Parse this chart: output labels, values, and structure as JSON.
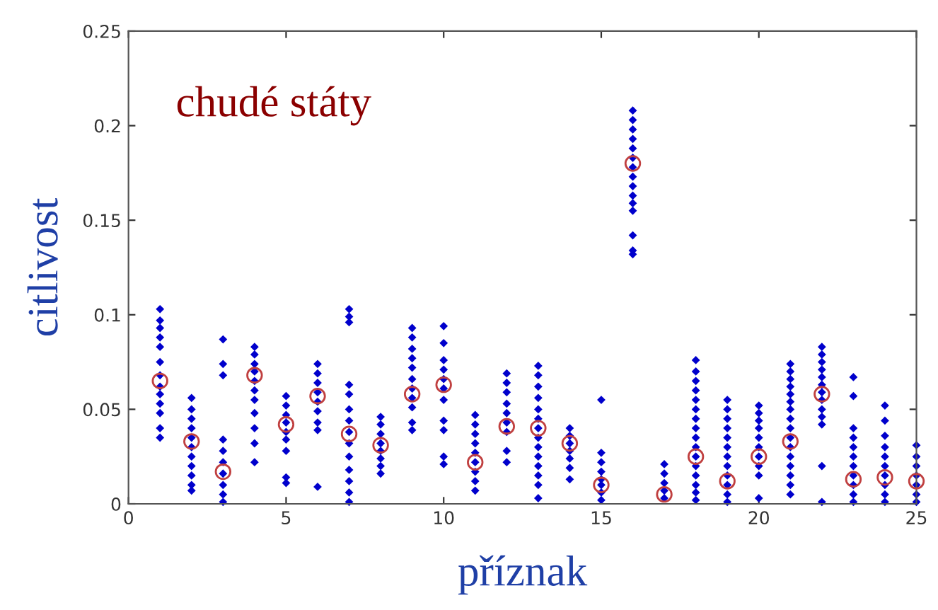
{
  "chart_data": {
    "type": "scatter",
    "xlabel": "příznak",
    "ylabel": "citlivost",
    "annotations": [
      "chudé státy"
    ],
    "xlim": [
      0,
      25
    ],
    "xticks": [
      0,
      5,
      10,
      15,
      20,
      25
    ],
    "ylim": [
      0,
      0.25
    ],
    "yticks": [
      0,
      0.05,
      0.1,
      0.15,
      0.2,
      0.25
    ],
    "grid": false,
    "legend": false,
    "series": [
      {
        "color": "#0000cc",
        "marker": "diamond",
        "x": [
          1,
          1,
          1,
          1,
          1,
          1,
          1,
          1,
          1,
          1,
          1,
          1,
          1,
          2,
          2,
          2,
          2,
          2,
          2,
          2,
          2,
          2,
          2,
          2,
          3,
          3,
          3,
          3,
          3,
          3,
          3,
          3,
          3,
          3,
          4,
          4,
          4,
          4,
          4,
          4,
          4,
          4,
          4,
          4,
          4,
          5,
          5,
          5,
          5,
          5,
          5,
          5,
          5,
          5,
          6,
          6,
          6,
          6,
          6,
          6,
          6,
          6,
          6,
          7,
          7,
          7,
          7,
          7,
          7,
          7,
          7,
          7,
          7,
          7,
          7,
          7,
          7,
          8,
          8,
          8,
          8,
          8,
          8,
          8,
          8,
          9,
          9,
          9,
          9,
          9,
          9,
          9,
          9,
          9,
          9,
          9,
          10,
          10,
          10,
          10,
          10,
          10,
          10,
          10,
          10,
          10,
          10,
          11,
          11,
          11,
          11,
          11,
          11,
          11,
          11,
          11,
          12,
          12,
          12,
          12,
          12,
          12,
          12,
          12,
          12,
          13,
          13,
          13,
          13,
          13,
          13,
          13,
          13,
          13,
          13,
          13,
          13,
          13,
          13,
          14,
          14,
          14,
          14,
          14,
          14,
          14,
          15,
          15,
          15,
          15,
          15,
          15,
          15,
          15,
          16,
          16,
          16,
          16,
          16,
          16,
          16,
          16,
          16,
          16,
          16,
          16,
          16,
          16,
          16,
          17,
          17,
          17,
          17,
          17,
          18,
          18,
          18,
          18,
          18,
          18,
          18,
          18,
          18,
          18,
          18,
          18,
          18,
          18,
          18,
          18,
          19,
          19,
          19,
          19,
          19,
          19,
          19,
          19,
          19,
          19,
          19,
          19,
          20,
          20,
          20,
          20,
          20,
          20,
          20,
          20,
          20,
          20,
          21,
          21,
          21,
          21,
          21,
          21,
          21,
          21,
          21,
          21,
          21,
          21,
          21,
          21,
          21,
          21,
          22,
          22,
          22,
          22,
          22,
          22,
          22,
          22,
          22,
          22,
          22,
          22,
          22,
          23,
          23,
          23,
          23,
          23,
          23,
          23,
          23,
          23,
          23,
          23,
          24,
          24,
          24,
          24,
          24,
          24,
          24,
          24,
          24,
          24,
          25,
          25,
          25,
          25,
          25,
          25,
          25
        ],
        "values": [
          0.103,
          0.097,
          0.093,
          0.088,
          0.083,
          0.075,
          0.068,
          0.062,
          0.058,
          0.053,
          0.048,
          0.04,
          0.035,
          0.056,
          0.05,
          0.045,
          0.04,
          0.035,
          0.03,
          0.025,
          0.02,
          0.015,
          0.01,
          0.007,
          0.087,
          0.074,
          0.068,
          0.034,
          0.028,
          0.022,
          0.016,
          0.01,
          0.005,
          0.001,
          0.083,
          0.079,
          0.074,
          0.07,
          0.065,
          0.06,
          0.055,
          0.048,
          0.04,
          0.032,
          0.022,
          0.057,
          0.052,
          0.047,
          0.043,
          0.038,
          0.034,
          0.028,
          0.014,
          0.011,
          0.074,
          0.069,
          0.064,
          0.059,
          0.054,
          0.049,
          0.043,
          0.039,
          0.009,
          0.103,
          0.099,
          0.096,
          0.063,
          0.058,
          0.05,
          0.044,
          0.038,
          0.032,
          0.025,
          0.018,
          0.012,
          0.006,
          0.001,
          0.046,
          0.042,
          0.037,
          0.032,
          0.028,
          0.024,
          0.02,
          0.016,
          0.093,
          0.088,
          0.082,
          0.077,
          0.072,
          0.066,
          0.061,
          0.056,
          0.051,
          0.043,
          0.039,
          0.094,
          0.085,
          0.076,
          0.071,
          0.066,
          0.061,
          0.055,
          0.044,
          0.039,
          0.025,
          0.021,
          0.047,
          0.042,
          0.037,
          0.032,
          0.027,
          0.022,
          0.017,
          0.012,
          0.007,
          0.069,
          0.064,
          0.059,
          0.053,
          0.048,
          0.043,
          0.038,
          0.028,
          0.022,
          0.073,
          0.068,
          0.062,
          0.056,
          0.05,
          0.045,
          0.04,
          0.035,
          0.03,
          0.025,
          0.02,
          0.015,
          0.01,
          0.003,
          0.04,
          0.036,
          0.032,
          0.028,
          0.024,
          0.019,
          0.013,
          0.055,
          0.027,
          0.022,
          0.017,
          0.013,
          0.01,
          0.006,
          0.002,
          0.208,
          0.203,
          0.198,
          0.193,
          0.188,
          0.183,
          0.178,
          0.173,
          0.168,
          0.163,
          0.159,
          0.155,
          0.142,
          0.134,
          0.132,
          0.021,
          0.016,
          0.011,
          0.007,
          0.003,
          0.076,
          0.07,
          0.065,
          0.06,
          0.055,
          0.05,
          0.045,
          0.04,
          0.035,
          0.03,
          0.025,
          0.02,
          0.015,
          0.01,
          0.006,
          0.002,
          0.055,
          0.05,
          0.045,
          0.04,
          0.035,
          0.03,
          0.025,
          0.02,
          0.015,
          0.01,
          0.005,
          0.001,
          0.052,
          0.048,
          0.044,
          0.04,
          0.035,
          0.03,
          0.025,
          0.02,
          0.015,
          0.003,
          0.074,
          0.07,
          0.066,
          0.062,
          0.058,
          0.054,
          0.05,
          0.045,
          0.04,
          0.035,
          0.03,
          0.025,
          0.02,
          0.015,
          0.01,
          0.005,
          0.083,
          0.079,
          0.075,
          0.071,
          0.067,
          0.063,
          0.059,
          0.055,
          0.05,
          0.046,
          0.042,
          0.02,
          0.001,
          0.067,
          0.057,
          0.04,
          0.035,
          0.03,
          0.025,
          0.02,
          0.015,
          0.01,
          0.005,
          0.001,
          0.052,
          0.044,
          0.036,
          0.03,
          0.025,
          0.02,
          0.015,
          0.01,
          0.005,
          0.001,
          0.031,
          0.025,
          0.02,
          0.015,
          0.01,
          0.005,
          0.001
        ]
      },
      {
        "color": "#c04040",
        "marker": "circle",
        "x": [
          1,
          2,
          3,
          4,
          5,
          6,
          7,
          8,
          9,
          10,
          11,
          12,
          13,
          14,
          15,
          16,
          17,
          18,
          19,
          20,
          21,
          22,
          23,
          24,
          25
        ],
        "values": [
          0.065,
          0.033,
          0.017,
          0.068,
          0.042,
          0.057,
          0.037,
          0.031,
          0.058,
          0.063,
          0.022,
          0.041,
          0.04,
          0.032,
          0.01,
          0.18,
          0.005,
          0.025,
          0.012,
          0.025,
          0.033,
          0.058,
          0.013,
          0.014,
          0.012
        ]
      }
    ]
  }
}
